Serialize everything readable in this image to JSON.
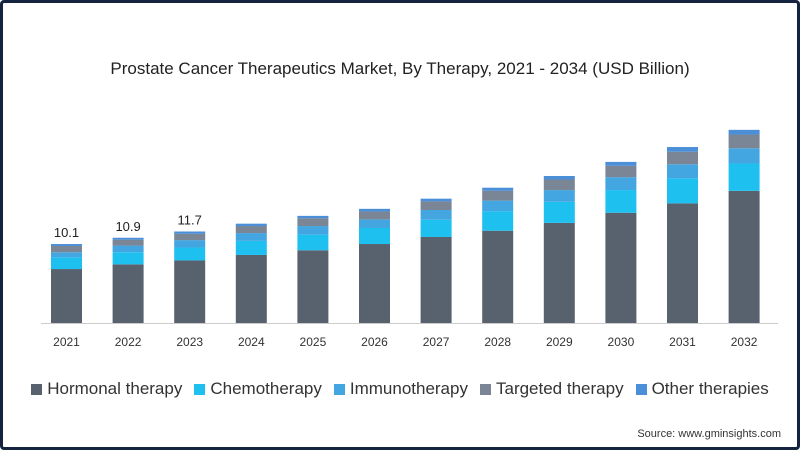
{
  "chart_data": {
    "type": "bar",
    "stacked": true,
    "title": "Prostate Cancer Therapeutics Market, By Therapy, 2021 - 2034 (USD Billion)",
    "xlabel": "",
    "ylabel": "",
    "ylim": [
      0,
      26
    ],
    "grid": false,
    "legend_position": "bottom",
    "categories": [
      "2021",
      "2022",
      "2023",
      "2024",
      "2025",
      "2026",
      "2027",
      "2028",
      "2029",
      "2030",
      "2031",
      "2032"
    ],
    "series": [
      {
        "name": "Hormonal therapy",
        "color": "#58626e",
        "values": [
          6.9,
          7.5,
          8.0,
          8.7,
          9.3,
          10.1,
          11.0,
          11.8,
          12.8,
          14.1,
          15.3,
          16.9
        ]
      },
      {
        "name": "Chemotherapy",
        "color": "#1ec0f0",
        "values": [
          1.5,
          1.55,
          1.65,
          1.8,
          2.0,
          2.05,
          2.2,
          2.5,
          2.7,
          2.9,
          3.2,
          3.5
        ]
      },
      {
        "name": "Immunotherapy",
        "color": "#44a6e0",
        "values": [
          0.65,
          0.85,
          0.95,
          1.0,
          1.1,
          1.1,
          1.25,
          1.35,
          1.5,
          1.65,
          1.8,
          1.95
        ]
      },
      {
        "name": "Targeted therapy",
        "color": "#7a8595",
        "values": [
          0.8,
          0.75,
          0.8,
          0.9,
          1.0,
          1.0,
          1.1,
          1.25,
          1.35,
          1.45,
          1.6,
          1.75
        ]
      },
      {
        "name": "Other therapies",
        "color": "#4a8fd8",
        "values": [
          0.25,
          0.25,
          0.3,
          0.3,
          0.3,
          0.35,
          0.35,
          0.4,
          0.45,
          0.5,
          0.6,
          0.6
        ]
      }
    ],
    "data_labels": {
      "2021": "10.1",
      "2022": "10.9",
      "2023": "11.7"
    }
  },
  "source": "Source: www.gminsights.com"
}
